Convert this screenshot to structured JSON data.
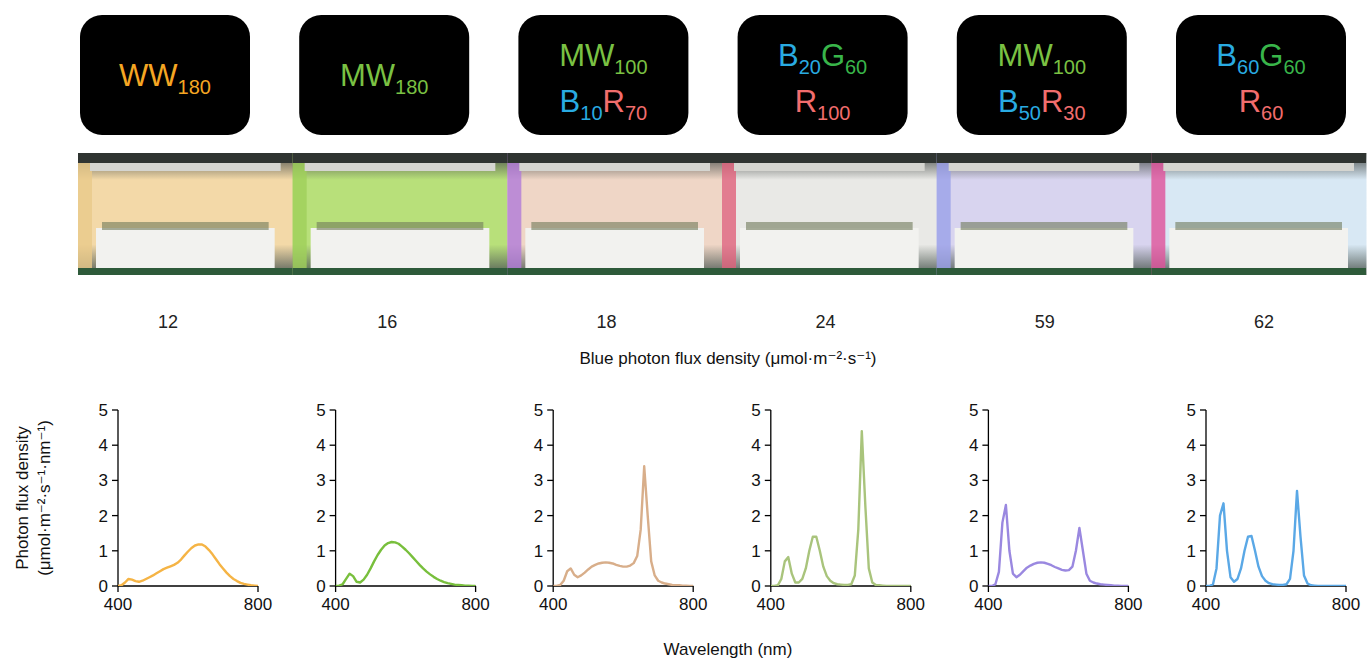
{
  "chart_data": [
    {
      "type": "line",
      "color": "#f5b445",
      "blue_pfd": 12,
      "treatment": [
        [
          {
            "text": "WW",
            "sub": "180",
            "color": "#f5a623"
          }
        ]
      ],
      "xlim": [
        400,
        800
      ],
      "ylim": [
        0,
        5
      ],
      "xticks": [
        400,
        800
      ],
      "yticks": [
        0,
        1,
        2,
        3,
        4,
        5
      ],
      "x": [
        400,
        410,
        420,
        430,
        440,
        450,
        460,
        470,
        480,
        490,
        500,
        510,
        520,
        530,
        540,
        550,
        560,
        570,
        580,
        590,
        600,
        610,
        620,
        630,
        640,
        650,
        660,
        670,
        680,
        690,
        700,
        710,
        720,
        730,
        740,
        750,
        760,
        770,
        780,
        790,
        800
      ],
      "values": [
        0,
        0.02,
        0.1,
        0.2,
        0.18,
        0.14,
        0.12,
        0.15,
        0.2,
        0.25,
        0.3,
        0.36,
        0.42,
        0.48,
        0.52,
        0.56,
        0.6,
        0.66,
        0.75,
        0.87,
        0.98,
        1.08,
        1.15,
        1.18,
        1.18,
        1.12,
        1.02,
        0.9,
        0.76,
        0.62,
        0.5,
        0.38,
        0.28,
        0.2,
        0.14,
        0.09,
        0.06,
        0.04,
        0.02,
        0.01,
        0
      ]
    },
    {
      "type": "line",
      "color": "#78bf3c",
      "blue_pfd": 16,
      "treatment": [
        [
          {
            "text": "MW",
            "sub": "180",
            "color": "#7ac143"
          }
        ]
      ],
      "xlim": [
        400,
        800
      ],
      "ylim": [
        0,
        5
      ],
      "xticks": [
        400,
        800
      ],
      "yticks": [
        0,
        1,
        2,
        3,
        4,
        5
      ],
      "x": [
        400,
        410,
        420,
        430,
        440,
        450,
        460,
        470,
        480,
        490,
        500,
        510,
        520,
        530,
        540,
        550,
        560,
        570,
        580,
        590,
        600,
        610,
        620,
        630,
        640,
        650,
        660,
        670,
        680,
        690,
        700,
        710,
        720,
        730,
        740,
        750,
        760,
        770,
        780,
        790,
        800
      ],
      "values": [
        0,
        0.01,
        0.05,
        0.2,
        0.35,
        0.28,
        0.12,
        0.1,
        0.18,
        0.32,
        0.5,
        0.7,
        0.88,
        1.03,
        1.15,
        1.22,
        1.25,
        1.24,
        1.2,
        1.12,
        1.03,
        0.93,
        0.82,
        0.71,
        0.6,
        0.5,
        0.41,
        0.33,
        0.26,
        0.2,
        0.15,
        0.11,
        0.08,
        0.06,
        0.04,
        0.03,
        0.02,
        0.01,
        0.01,
        0,
        0
      ]
    },
    {
      "type": "line",
      "color": "#d8ae8a",
      "blue_pfd": 18,
      "treatment": [
        [
          {
            "text": "MW",
            "sub": "100",
            "color": "#7ac143"
          }
        ],
        [
          {
            "text": "B",
            "sub": "10",
            "color": "#29abe2"
          },
          {
            "text": "R",
            "sub": "70",
            "color": "#f26d6d"
          }
        ]
      ],
      "xlim": [
        400,
        800
      ],
      "ylim": [
        0,
        5
      ],
      "xticks": [
        400,
        800
      ],
      "yticks": [
        0,
        1,
        2,
        3,
        4,
        5
      ],
      "x": [
        400,
        410,
        420,
        430,
        440,
        450,
        460,
        470,
        480,
        490,
        500,
        510,
        520,
        530,
        540,
        550,
        560,
        570,
        580,
        590,
        600,
        610,
        620,
        630,
        640,
        650,
        660,
        670,
        680,
        690,
        700,
        710,
        720,
        730,
        740,
        750,
        760,
        770,
        780,
        790,
        800
      ],
      "values": [
        0,
        0,
        0.03,
        0.15,
        0.42,
        0.5,
        0.32,
        0.25,
        0.3,
        0.38,
        0.47,
        0.55,
        0.6,
        0.64,
        0.66,
        0.67,
        0.66,
        0.64,
        0.6,
        0.57,
        0.55,
        0.55,
        0.58,
        0.65,
        0.85,
        1.6,
        3.4,
        2.0,
        0.7,
        0.3,
        0.15,
        0.1,
        0.07,
        0.05,
        0.03,
        0.02,
        0.02,
        0.01,
        0.01,
        0,
        0
      ]
    },
    {
      "type": "line",
      "color": "#a9c47c",
      "blue_pfd": 24,
      "treatment": [
        [
          {
            "text": "B",
            "sub": "20",
            "color": "#29abe2"
          },
          {
            "text": "G",
            "sub": "60",
            "color": "#39b54a"
          }
        ],
        [
          {
            "text": "R",
            "sub": "100",
            "color": "#f26d6d"
          }
        ]
      ],
      "xlim": [
        400,
        800
      ],
      "ylim": [
        0,
        5
      ],
      "xticks": [
        400,
        800
      ],
      "yticks": [
        0,
        1,
        2,
        3,
        4,
        5
      ],
      "x": [
        400,
        410,
        420,
        430,
        440,
        450,
        460,
        470,
        480,
        490,
        500,
        510,
        520,
        530,
        540,
        550,
        560,
        570,
        580,
        590,
        600,
        610,
        620,
        630,
        640,
        650,
        660,
        670,
        680,
        690,
        700,
        710,
        720,
        730,
        740,
        750,
        760,
        770,
        780,
        790,
        800
      ],
      "values": [
        0,
        0,
        0.02,
        0.2,
        0.7,
        0.82,
        0.35,
        0.1,
        0.1,
        0.2,
        0.5,
        1.0,
        1.4,
        1.4,
        1.0,
        0.55,
        0.28,
        0.15,
        0.08,
        0.05,
        0.04,
        0.03,
        0.03,
        0.05,
        0.3,
        1.6,
        4.4,
        2.3,
        0.5,
        0.1,
        0.03,
        0.02,
        0.01,
        0,
        0,
        0,
        0,
        0,
        0,
        0,
        0
      ]
    },
    {
      "type": "line",
      "color": "#9a88e0",
      "blue_pfd": 59,
      "treatment": [
        [
          {
            "text": "MW",
            "sub": "100",
            "color": "#7ac143"
          }
        ],
        [
          {
            "text": "B",
            "sub": "50",
            "color": "#29abe2"
          },
          {
            "text": "R",
            "sub": "30",
            "color": "#f26d6d"
          }
        ]
      ],
      "xlim": [
        400,
        800
      ],
      "ylim": [
        0,
        5
      ],
      "xticks": [
        400,
        800
      ],
      "yticks": [
        0,
        1,
        2,
        3,
        4,
        5
      ],
      "x": [
        400,
        410,
        420,
        430,
        440,
        450,
        460,
        470,
        480,
        490,
        500,
        510,
        520,
        530,
        540,
        550,
        560,
        570,
        580,
        590,
        600,
        610,
        620,
        630,
        640,
        650,
        660,
        670,
        680,
        690,
        700,
        710,
        720,
        730,
        740,
        750,
        760,
        770,
        780,
        790,
        800
      ],
      "values": [
        0,
        0,
        0.05,
        0.4,
        1.8,
        2.3,
        1.0,
        0.35,
        0.25,
        0.32,
        0.42,
        0.52,
        0.58,
        0.63,
        0.66,
        0.67,
        0.66,
        0.63,
        0.59,
        0.54,
        0.5,
        0.46,
        0.44,
        0.45,
        0.55,
        1.0,
        1.65,
        1.0,
        0.35,
        0.15,
        0.1,
        0.07,
        0.05,
        0.04,
        0.03,
        0.02,
        0.01,
        0.01,
        0,
        0,
        0
      ]
    },
    {
      "type": "line",
      "color": "#5aa8e6",
      "blue_pfd": 62,
      "treatment": [
        [
          {
            "text": "B",
            "sub": "60",
            "color": "#29abe2"
          },
          {
            "text": "G",
            "sub": "60",
            "color": "#39b54a"
          }
        ],
        [
          {
            "text": "R",
            "sub": "60",
            "color": "#f26d6d"
          }
        ]
      ],
      "xlim": [
        400,
        800
      ],
      "ylim": [
        0,
        5
      ],
      "xticks": [
        400,
        800
      ],
      "yticks": [
        0,
        1,
        2,
        3,
        4,
        5
      ],
      "x": [
        400,
        410,
        420,
        430,
        440,
        450,
        460,
        470,
        480,
        490,
        500,
        510,
        520,
        530,
        540,
        550,
        560,
        570,
        580,
        590,
        600,
        610,
        620,
        630,
        640,
        650,
        660,
        670,
        680,
        690,
        700,
        710,
        720,
        730,
        740,
        750,
        760,
        770,
        780,
        790,
        800
      ],
      "values": [
        0,
        0,
        0.05,
        0.5,
        2.0,
        2.35,
        1.0,
        0.25,
        0.12,
        0.2,
        0.5,
        1.0,
        1.4,
        1.42,
        1.0,
        0.55,
        0.28,
        0.15,
        0.08,
        0.05,
        0.04,
        0.03,
        0.03,
        0.05,
        0.2,
        1.0,
        2.7,
        1.4,
        0.3,
        0.07,
        0.02,
        0.01,
        0,
        0,
        0,
        0,
        0,
        0,
        0,
        0,
        0
      ]
    }
  ],
  "figure": {
    "blue_axis_label": "Blue photon flux density (μmol·m⁻²·s⁻¹)",
    "x_label": "Wavelength (nm)",
    "y_label": "Photon flux density (μmol·m⁻²·s⁻¹·nm⁻¹)"
  }
}
